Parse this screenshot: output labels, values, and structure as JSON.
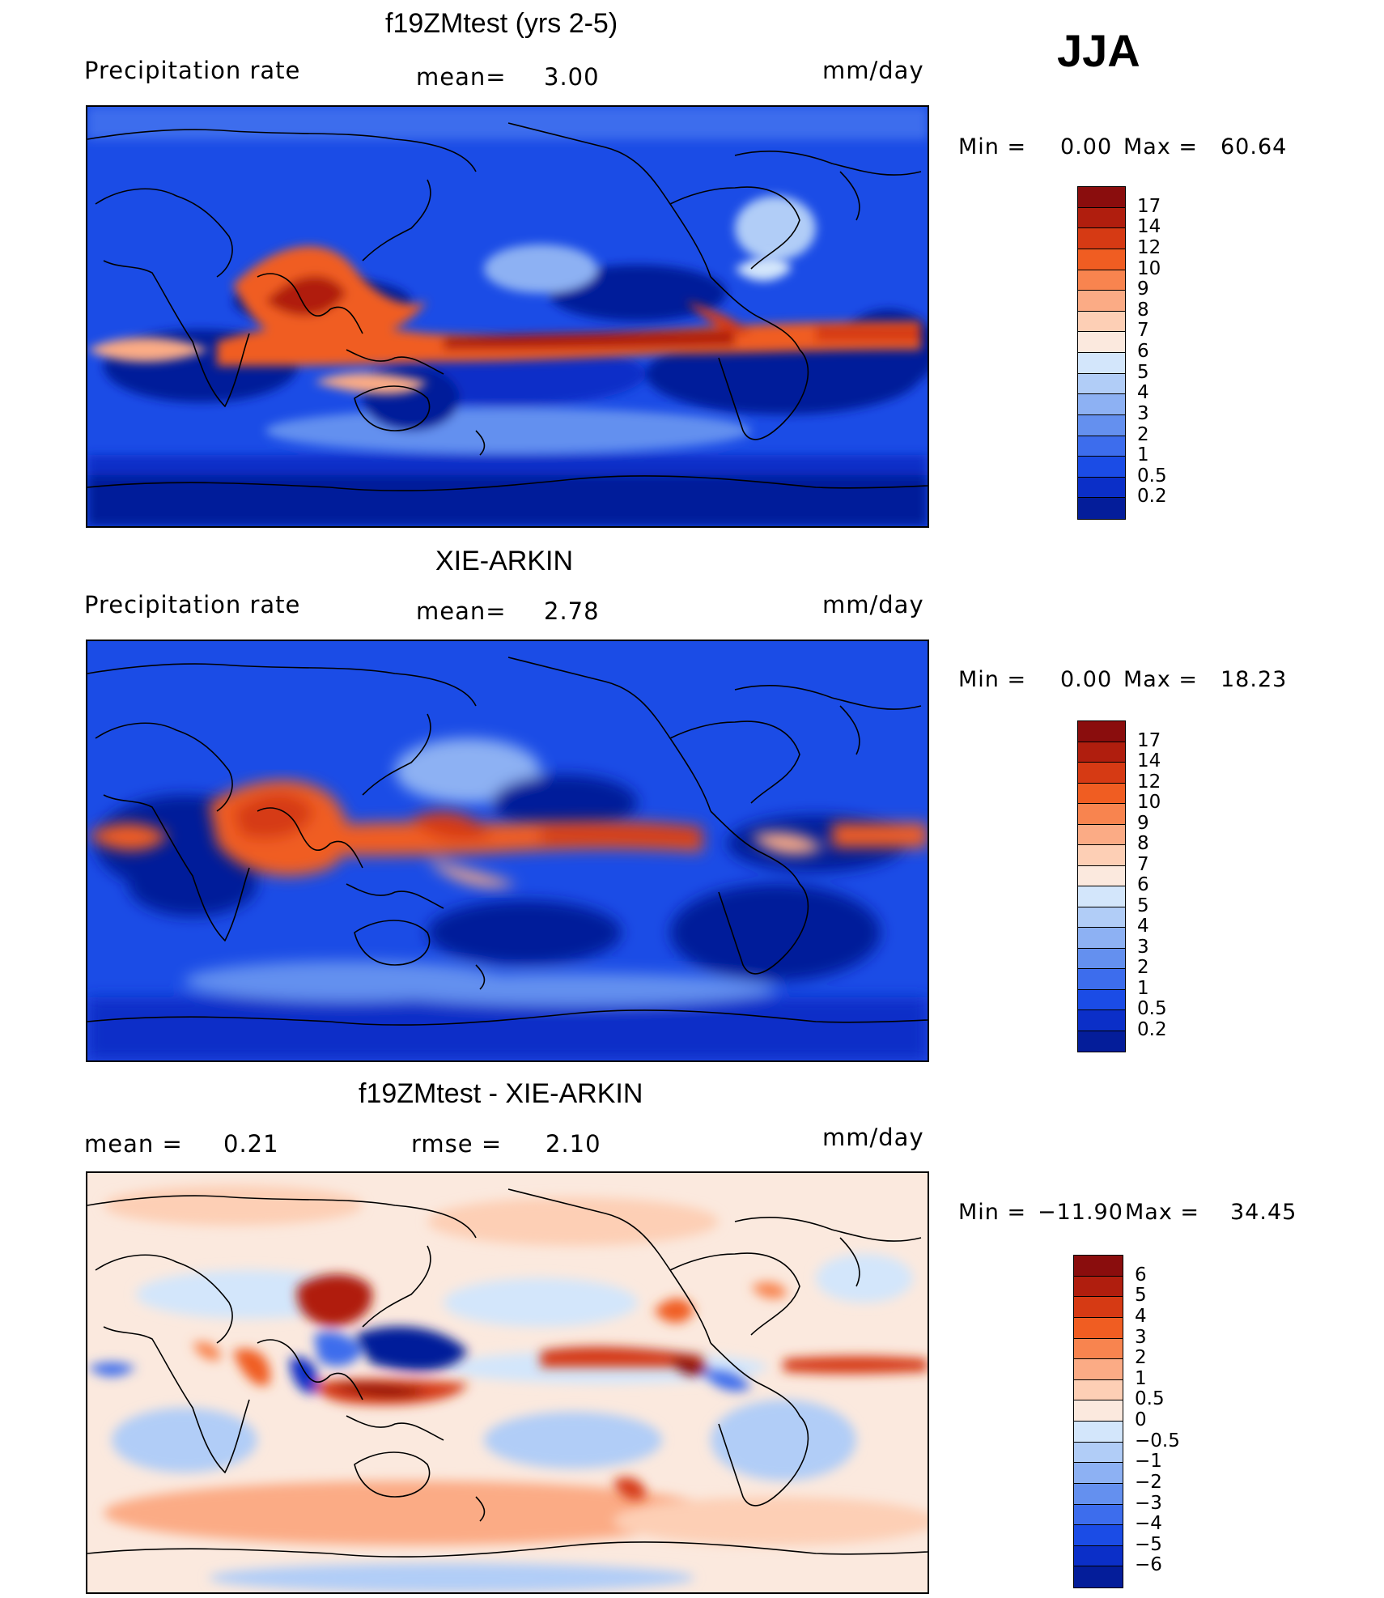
{
  "season": "JJA",
  "panels": [
    {
      "id": "model",
      "title": "f19ZMtest (yrs 2-5)",
      "left_label": "Precipitation rate",
      "mid_label": "mean=",
      "mid_value": "3.00",
      "units": "mm/day",
      "minmax": {
        "min_label": "Min =",
        "min_value": "0.00",
        "max_label": "Max =",
        "max_value": "60.64"
      },
      "colorbar": {
        "levels": [
          "17",
          "14",
          "12",
          "10",
          "9",
          "8",
          "7",
          "6",
          "5",
          "4",
          "3",
          "2",
          "1",
          "0.5",
          "0.2"
        ],
        "colors": [
          "#8a0d0d",
          "#b01e0e",
          "#d63a14",
          "#f05d22",
          "#f8844f",
          "#fbab85",
          "#fdcfb5",
          "#fbe9de",
          "#d3e6fb",
          "#b1cdf7",
          "#8db1f3",
          "#6490ef",
          "#3d6ded",
          "#1b4ce6",
          "#0b2fc8",
          "#041d9a"
        ]
      }
    },
    {
      "id": "obs",
      "title": "XIE-ARKIN",
      "left_label": "Precipitation rate",
      "mid_label": "mean=",
      "mid_value": "2.78",
      "units": "mm/day",
      "minmax": {
        "min_label": "Min =",
        "min_value": "0.00",
        "max_label": "Max =",
        "max_value": "18.23"
      },
      "colorbar": {
        "levels": [
          "17",
          "14",
          "12",
          "10",
          "9",
          "8",
          "7",
          "6",
          "5",
          "4",
          "3",
          "2",
          "1",
          "0.5",
          "0.2"
        ],
        "colors": [
          "#8a0d0d",
          "#b01e0e",
          "#d63a14",
          "#f05d22",
          "#f8844f",
          "#fbab85",
          "#fdcfb5",
          "#fbe9de",
          "#d3e6fb",
          "#b1cdf7",
          "#8db1f3",
          "#6490ef",
          "#3d6ded",
          "#1b4ce6",
          "#0b2fc8",
          "#041d9a"
        ]
      }
    },
    {
      "id": "diff",
      "title": "f19ZMtest - XIE-ARKIN",
      "left_label": "mean =",
      "left_value": "0.21",
      "mid_label": "rmse =",
      "mid_value": "2.10",
      "units": "mm/day",
      "minmax": {
        "min_label": "Min =",
        "min_value": "−11.90",
        "max_label": "Max =",
        "max_value": "34.45"
      },
      "colorbar": {
        "levels": [
          "6",
          "5",
          "4",
          "3",
          "2",
          "1",
          "0.5",
          "0",
          "−0.5",
          "−1",
          "−2",
          "−3",
          "−4",
          "−5",
          "−6"
        ],
        "colors": [
          "#8a0d0d",
          "#b01e0e",
          "#d63a14",
          "#f05d22",
          "#f8844f",
          "#fbab85",
          "#fdcfb5",
          "#fbe9de",
          "#d3e6fb",
          "#b1cdf7",
          "#8db1f3",
          "#6490ef",
          "#3d6ded",
          "#1b4ce6",
          "#0b2fc8",
          "#041d9a"
        ]
      }
    }
  ]
}
